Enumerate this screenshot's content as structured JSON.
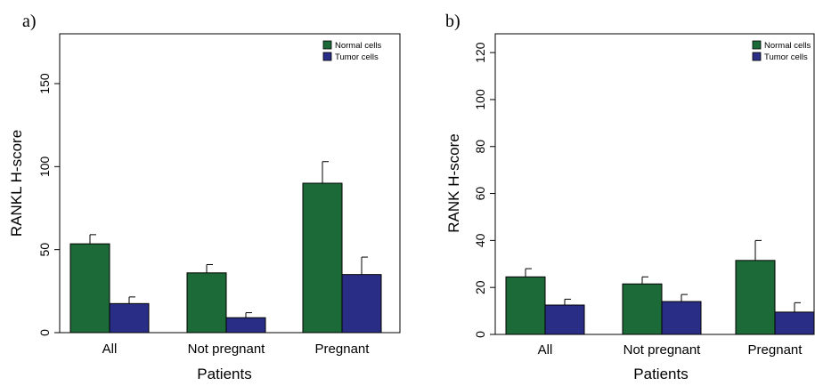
{
  "chart_data": [
    {
      "type": "bar",
      "panel": "a)",
      "categories": [
        "All",
        "Not pregnant",
        "Pregnant"
      ],
      "series": [
        {
          "name": "Normal cells",
          "color": "#1c6a37",
          "values": [
            53.5,
            36,
            90
          ],
          "errors": [
            5.5,
            5,
            13
          ]
        },
        {
          "name": "Tumor cells",
          "color": "#2a2d86",
          "values": [
            17.5,
            9,
            35
          ],
          "errors": [
            4,
            3,
            10.5
          ]
        }
      ],
      "xlabel": "Patients",
      "ylabel": "RANKL H-score",
      "ylim": [
        0,
        180
      ],
      "yticks": [
        0,
        50,
        100,
        150
      ],
      "grid": false,
      "legend": "top-right"
    },
    {
      "type": "bar",
      "panel": "b)",
      "categories": [
        "All",
        "Not pregnant",
        "Pregnant"
      ],
      "series": [
        {
          "name": "Normal cells",
          "color": "#1c6a37",
          "values": [
            24.5,
            21.5,
            31.5
          ],
          "errors": [
            3.5,
            3,
            8.5
          ]
        },
        {
          "name": "Tumor cells",
          "color": "#2a2d86",
          "values": [
            12.5,
            14,
            9.5
          ],
          "errors": [
            2.5,
            3,
            4
          ]
        }
      ],
      "xlabel": "Patients",
      "ylabel": "RANK H-score",
      "ylim": [
        0,
        128
      ],
      "yticks": [
        0,
        20,
        40,
        60,
        80,
        100,
        120
      ],
      "grid": false,
      "legend": "top-right"
    }
  ]
}
